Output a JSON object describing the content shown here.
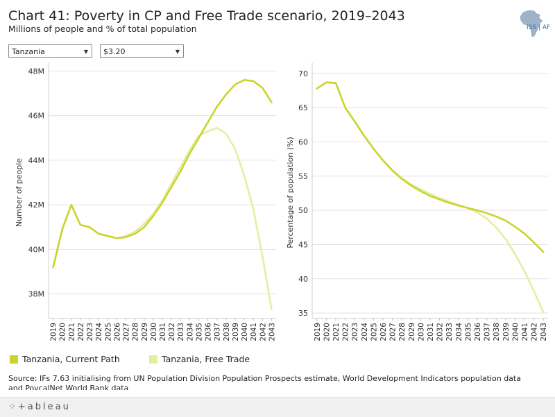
{
  "header": {
    "title": "Chart 41: Poverty in CP and Free Trade scenario, 2019–2043",
    "subtitle": "Millions of people and % of total population",
    "logo_text": "ISS | AFI"
  },
  "filters": {
    "country": "Tanzania",
    "threshold": "$3.20"
  },
  "colors": {
    "current_path": "#c8d52e",
    "free_trade": "#e6eda3",
    "grid": "#e3e3e3",
    "axis": "#999999"
  },
  "chart_data": [
    {
      "type": "line",
      "title": "",
      "xlabel": "",
      "ylabel": "Number of people",
      "ylim": [
        36.9,
        48.2
      ],
      "yticks": [
        38,
        40,
        42,
        44,
        46,
        48
      ],
      "ytick_labels": [
        "38M",
        "40M",
        "42M",
        "44M",
        "46M",
        "48M"
      ],
      "x": [
        "2019",
        "2020",
        "2021",
        "2022",
        "2023",
        "2024",
        "2025",
        "2026",
        "2027",
        "2028",
        "2029",
        "2030",
        "2031",
        "2032",
        "2033",
        "2034",
        "2035",
        "2036",
        "2037",
        "2038",
        "2039",
        "2040",
        "2041",
        "2042",
        "2043"
      ],
      "series": [
        {
          "name": "Tanzania, Current Path",
          "values": [
            39.2,
            40.9,
            42.0,
            41.1,
            41.0,
            40.7,
            40.6,
            40.5,
            40.55,
            40.7,
            41.0,
            41.5,
            42.1,
            42.8,
            43.5,
            44.3,
            45.0,
            45.7,
            46.4,
            46.95,
            47.4,
            47.6,
            47.55,
            47.25,
            46.6
          ]
        },
        {
          "name": "Tanzania, Free Trade",
          "values": [
            39.2,
            40.9,
            42.0,
            41.1,
            41.0,
            40.7,
            40.6,
            40.5,
            40.6,
            40.8,
            41.15,
            41.6,
            42.2,
            42.95,
            43.7,
            44.45,
            45.1,
            45.3,
            45.45,
            45.2,
            44.5,
            43.3,
            41.8,
            39.7,
            37.3
          ]
        }
      ]
    },
    {
      "type": "line",
      "title": "",
      "xlabel": "",
      "ylabel": "Percentage of population (%)",
      "ylim": [
        34.2,
        71.0
      ],
      "yticks": [
        35,
        40,
        45,
        50,
        55,
        60,
        65,
        70
      ],
      "ytick_labels": [
        "35",
        "40",
        "45",
        "50",
        "55",
        "60",
        "65",
        "70"
      ],
      "x": [
        "2019",
        "2020",
        "2021",
        "2022",
        "2023",
        "2024",
        "2025",
        "2026",
        "2027",
        "2028",
        "2029",
        "2030",
        "2031",
        "2032",
        "2033",
        "2034",
        "2035",
        "2036",
        "2037",
        "2038",
        "2039",
        "2040",
        "2041",
        "2042",
        "2043"
      ],
      "series": [
        {
          "name": "Tanzania, Current Path",
          "values": [
            67.8,
            68.7,
            68.6,
            65.0,
            63.0,
            60.9,
            59.0,
            57.3,
            55.8,
            54.6,
            53.6,
            52.8,
            52.1,
            51.6,
            51.1,
            50.7,
            50.35,
            50.0,
            49.6,
            49.1,
            48.5,
            47.6,
            46.6,
            45.3,
            43.9
          ]
        },
        {
          "name": "Tanzania, Free Trade",
          "values": [
            67.8,
            68.7,
            68.6,
            65.0,
            63.0,
            60.9,
            59.0,
            57.3,
            55.9,
            54.7,
            53.8,
            53.1,
            52.4,
            51.8,
            51.3,
            50.8,
            50.3,
            49.7,
            48.8,
            47.5,
            45.8,
            43.6,
            41.1,
            38.2,
            35.1
          ]
        }
      ]
    }
  ],
  "legend": {
    "items": [
      {
        "label": "Tanzania, Current Path"
      },
      {
        "label": "Tanzania, Free Trade"
      }
    ]
  },
  "source": {
    "text": "Source: IFs 7.63 initialising from UN Population Division Population Prospects estimate, World Development Indicators population data and PovcalNet World Bank data"
  },
  "footer": {
    "brand": "⁘+ableau"
  }
}
